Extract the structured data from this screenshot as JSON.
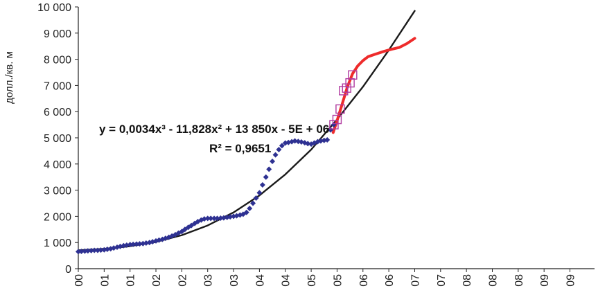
{
  "chart_data": {
    "type": "scatter",
    "ylabel": "долл./кв. м",
    "ylim": [
      0,
      10000
    ],
    "y_ticks": [
      0,
      1000,
      2000,
      3000,
      4000,
      5000,
      6000,
      7000,
      8000,
      9000,
      10000
    ],
    "y_tick_labels": [
      "0",
      "1 000",
      "2 000",
      "3 000",
      "4 000",
      "5 000",
      "6 000",
      "7 000",
      "8 000",
      "9 000",
      "10 000"
    ],
    "x_tick_labels": [
      "00",
      "01",
      "01",
      "02",
      "02",
      "03",
      "03",
      "04",
      "04",
      "05",
      "05",
      "06",
      "06",
      "07",
      "07",
      "08",
      "08",
      "08",
      "09",
      "09"
    ],
    "grid": false,
    "annotations": {
      "equation": "y = 0,0034x³ - 11,828x² + 13 850x - 5E + 06",
      "r_squared": "R² = 0,9651"
    },
    "series": [
      {
        "kind": "observed-diamonds",
        "color": "#2e3192",
        "points": [
          [
            0.0,
            650
          ],
          [
            0.12,
            660
          ],
          [
            0.25,
            670
          ],
          [
            0.37,
            680
          ],
          [
            0.5,
            690
          ],
          [
            0.62,
            700
          ],
          [
            0.75,
            700
          ],
          [
            0.87,
            710
          ],
          [
            1.0,
            720
          ],
          [
            1.12,
            740
          ],
          [
            1.25,
            760
          ],
          [
            1.37,
            790
          ],
          [
            1.5,
            820
          ],
          [
            1.62,
            850
          ],
          [
            1.75,
            880
          ],
          [
            1.87,
            900
          ],
          [
            2.0,
            920
          ],
          [
            2.12,
            930
          ],
          [
            2.25,
            940
          ],
          [
            2.37,
            950
          ],
          [
            2.5,
            960
          ],
          [
            2.62,
            980
          ],
          [
            2.75,
            1000
          ],
          [
            2.87,
            1030
          ],
          [
            3.0,
            1060
          ],
          [
            3.12,
            1090
          ],
          [
            3.25,
            1120
          ],
          [
            3.37,
            1160
          ],
          [
            3.5,
            1200
          ],
          [
            3.62,
            1250
          ],
          [
            3.75,
            1300
          ],
          [
            3.87,
            1360
          ],
          [
            4.0,
            1420
          ],
          [
            4.12,
            1500
          ],
          [
            4.25,
            1580
          ],
          [
            4.37,
            1650
          ],
          [
            4.5,
            1730
          ],
          [
            4.62,
            1800
          ],
          [
            4.75,
            1860
          ],
          [
            4.87,
            1900
          ],
          [
            5.0,
            1920
          ],
          [
            5.12,
            1920
          ],
          [
            5.25,
            1920
          ],
          [
            5.37,
            1920
          ],
          [
            5.5,
            1930
          ],
          [
            5.62,
            1940
          ],
          [
            5.75,
            1960
          ],
          [
            5.87,
            1980
          ],
          [
            6.0,
            2000
          ],
          [
            6.12,
            2020
          ],
          [
            6.25,
            2050
          ],
          [
            6.37,
            2080
          ],
          [
            6.5,
            2150
          ],
          [
            6.62,
            2300
          ],
          [
            6.75,
            2500
          ],
          [
            6.87,
            2700
          ],
          [
            7.0,
            2900
          ],
          [
            7.12,
            3200
          ],
          [
            7.25,
            3500
          ],
          [
            7.37,
            3800
          ],
          [
            7.5,
            4100
          ],
          [
            7.62,
            4350
          ],
          [
            7.75,
            4550
          ],
          [
            7.87,
            4700
          ],
          [
            8.0,
            4800
          ],
          [
            8.12,
            4820
          ],
          [
            8.25,
            4850
          ],
          [
            8.37,
            4880
          ],
          [
            8.5,
            4860
          ],
          [
            8.62,
            4840
          ],
          [
            8.75,
            4810
          ],
          [
            8.87,
            4780
          ],
          [
            9.0,
            4760
          ],
          [
            9.12,
            4800
          ],
          [
            9.25,
            4850
          ],
          [
            9.37,
            4880
          ],
          [
            9.5,
            4900
          ],
          [
            9.62,
            4920
          ],
          [
            9.75,
            5300
          ],
          [
            9.87,
            5500
          ]
        ]
      },
      {
        "kind": "observed-squares",
        "color": "#b03aa0",
        "points": [
          [
            9.88,
            5500
          ],
          [
            10.0,
            5700
          ],
          [
            10.12,
            6100
          ],
          [
            10.25,
            6800
          ],
          [
            10.37,
            6900
          ],
          [
            10.5,
            7100
          ],
          [
            10.6,
            7400
          ]
        ]
      },
      {
        "kind": "trend-line",
        "color": "#1a1a1a",
        "points": [
          [
            0.0,
            700
          ],
          [
            1.0,
            760
          ],
          [
            2.0,
            860
          ],
          [
            3.0,
            1020
          ],
          [
            4.0,
            1280
          ],
          [
            5.0,
            1650
          ],
          [
            6.0,
            2150
          ],
          [
            7.0,
            2800
          ],
          [
            8.0,
            3600
          ],
          [
            9.0,
            4550
          ],
          [
            10.0,
            5700
          ],
          [
            11.0,
            6950
          ],
          [
            12.0,
            8350
          ],
          [
            13.0,
            9850
          ]
        ]
      },
      {
        "kind": "forecast-line",
        "color": "#ee2b2b",
        "points": [
          [
            9.85,
            5200
          ],
          [
            10.0,
            5650
          ],
          [
            10.2,
            6300
          ],
          [
            10.4,
            6950
          ],
          [
            10.6,
            7450
          ],
          [
            10.8,
            7750
          ],
          [
            11.0,
            7950
          ],
          [
            11.2,
            8100
          ],
          [
            11.5,
            8200
          ],
          [
            11.8,
            8300
          ],
          [
            12.1,
            8380
          ],
          [
            12.4,
            8450
          ],
          [
            12.7,
            8600
          ],
          [
            13.0,
            8800
          ]
        ]
      }
    ]
  }
}
